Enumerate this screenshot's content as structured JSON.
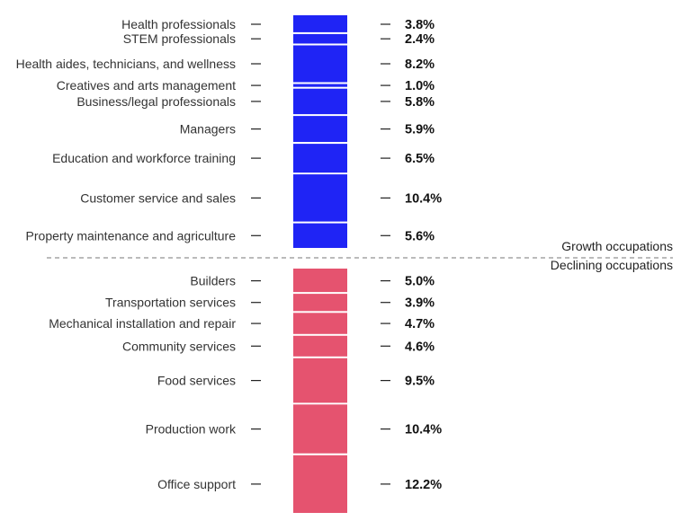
{
  "chart_data": {
    "type": "bar",
    "subtype": "stacked-single-column",
    "title": "",
    "xlabel": "",
    "ylabel": "",
    "value_suffix": "%",
    "groups": [
      {
        "name": "Growth occupations",
        "color": "#1F24F5",
        "categories": [
          "Health professionals",
          "STEM professionals",
          "Health aides, technicians, and wellness",
          "Creatives and arts management",
          "Business/legal professionals",
          "Managers",
          "Education and workforce training",
          "Customer service and sales",
          "Property maintenance and agriculture"
        ],
        "values": [
          3.8,
          2.4,
          8.2,
          1.0,
          5.8,
          5.9,
          6.5,
          10.4,
          5.6
        ],
        "labels": [
          "3.8%",
          "2.4%",
          "8.2%",
          "1.0%",
          "5.8%",
          "5.9%",
          "6.5%",
          "10.4%",
          "5.6%"
        ]
      },
      {
        "name": "Declining occupations",
        "color": "#E5536F",
        "categories": [
          "Builders",
          "Transportation services",
          "Mechanical installation and repair",
          "Community services",
          "Food services",
          "Production work",
          "Office support"
        ],
        "values": [
          5.0,
          3.9,
          4.7,
          4.6,
          9.5,
          10.4,
          12.2
        ],
        "labels": [
          "5.0%",
          "3.9%",
          "4.7%",
          "4.6%",
          "9.5%",
          "10.4%",
          "12.2%"
        ]
      }
    ],
    "legend": {
      "growth_label": "Growth occupations",
      "declining_label": "Declining occupations",
      "placement": "right, above and below divider"
    },
    "divider": "dashed"
  }
}
